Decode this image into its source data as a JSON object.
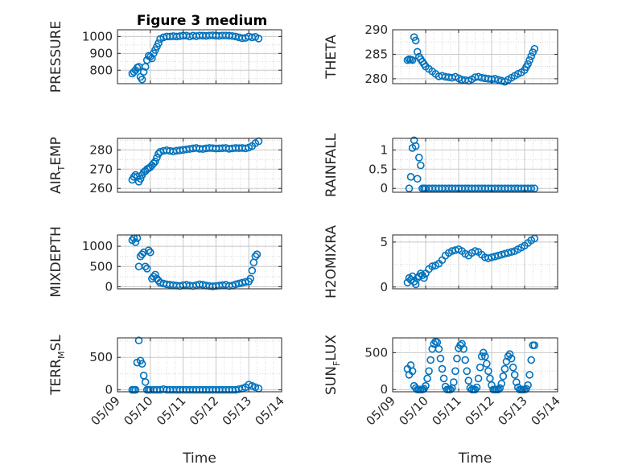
{
  "figure_title": "Figure 3 medium",
  "chart_data": [
    {
      "type": "scatter",
      "title": "Figure 3 medium",
      "ylabel": "PRESSURE",
      "xlabel": "",
      "xlim": [
        "05/09",
        "05/14"
      ],
      "ylim": [
        720,
        1040
      ],
      "yticks": [
        800,
        900,
        1000
      ],
      "xticks": [
        "05/09",
        "05/10",
        "05/11",
        "05/12",
        "05/13",
        "05/14"
      ],
      "grid": true,
      "x": [
        9.45,
        9.5,
        9.55,
        9.6,
        9.65,
        9.7,
        9.75,
        9.8,
        9.85,
        9.9,
        9.95,
        10.0,
        10.05,
        10.1,
        10.15,
        10.2,
        10.25,
        10.3,
        10.4,
        10.5,
        10.6,
        10.7,
        10.8,
        10.9,
        11.0,
        11.1,
        11.2,
        11.3,
        11.4,
        11.5,
        11.6,
        11.7,
        11.8,
        11.9,
        12.0,
        12.1,
        12.2,
        12.3,
        12.4,
        12.5,
        12.6,
        12.7,
        12.8,
        12.9,
        13.0,
        13.1,
        13.2,
        13.3
      ],
      "y": [
        780,
        790,
        800,
        815,
        820,
        760,
        745,
        790,
        820,
        860,
        885,
        880,
        870,
        900,
        920,
        940,
        960,
        985,
        995,
        1000,
        1000,
        1002,
        1000,
        1002,
        1005,
        1005,
        1000,
        1005,
        1002,
        1006,
        1005,
        1004,
        1006,
        1007,
        1005,
        1004,
        1006,
        1006,
        1005,
        1003,
        1000,
        995,
        990,
        992,
        1000,
        995,
        998,
        988
      ]
    },
    {
      "type": "scatter",
      "ylabel": "THETA",
      "xlabel": "",
      "xlim": [
        "05/09",
        "05/14"
      ],
      "ylim": [
        279,
        290
      ],
      "yticks": [
        280,
        285,
        290
      ],
      "xticks": [
        "05/09",
        "05/10",
        "05/11",
        "05/12",
        "05/13",
        "05/14"
      ],
      "grid": true,
      "x": [
        9.45,
        9.5,
        9.55,
        9.6,
        9.65,
        9.7,
        9.75,
        9.8,
        9.85,
        9.9,
        9.95,
        10.0,
        10.1,
        10.2,
        10.3,
        10.4,
        10.5,
        10.6,
        10.7,
        10.8,
        10.9,
        11.0,
        11.1,
        11.2,
        11.3,
        11.4,
        11.5,
        11.6,
        11.7,
        11.8,
        11.9,
        12.0,
        12.1,
        12.2,
        12.3,
        12.4,
        12.5,
        12.6,
        12.7,
        12.8,
        12.9,
        13.0,
        13.05,
        13.1,
        13.15,
        13.2,
        13.25,
        13.3
      ],
      "y": [
        283.8,
        284,
        283.9,
        283.8,
        288.5,
        287.8,
        285.5,
        284.5,
        284,
        283.5,
        283,
        282.5,
        282,
        281.5,
        281,
        280.5,
        280.6,
        280.4,
        280.3,
        280.2,
        280.4,
        280.1,
        279.8,
        279.7,
        279.6,
        279.9,
        280.3,
        280.4,
        280.2,
        280.1,
        280,
        279.9,
        280,
        279.8,
        279.6,
        279.4,
        279.8,
        280.2,
        280.6,
        281,
        281.3,
        281.8,
        282.4,
        283,
        283.8,
        284.6,
        285.4,
        286.1
      ]
    },
    {
      "type": "scatter",
      "ylabel": "AIR_TEMP",
      "xlabel": "",
      "xlim": [
        "05/09",
        "05/14"
      ],
      "ylim": [
        258,
        286
      ],
      "yticks": [
        260,
        270,
        280
      ],
      "xticks": [
        "05/09",
        "05/10",
        "05/11",
        "05/12",
        "05/13",
        "05/14"
      ],
      "grid": true,
      "x": [
        9.45,
        9.5,
        9.55,
        9.6,
        9.65,
        9.7,
        9.75,
        9.8,
        9.85,
        9.9,
        9.95,
        10.0,
        10.05,
        10.1,
        10.15,
        10.2,
        10.25,
        10.3,
        10.4,
        10.5,
        10.6,
        10.7,
        10.8,
        10.9,
        11.0,
        11.1,
        11.2,
        11.3,
        11.4,
        11.5,
        11.6,
        11.7,
        11.8,
        11.9,
        12.0,
        12.1,
        12.2,
        12.3,
        12.4,
        12.5,
        12.6,
        12.7,
        12.8,
        12.9,
        13.0,
        13.1,
        13.2,
        13.3
      ],
      "y": [
        264.5,
        266,
        267,
        266,
        263.5,
        265,
        267,
        268.5,
        269,
        270,
        270.5,
        271,
        272,
        273,
        274,
        276,
        278,
        279,
        279.5,
        279.8,
        279.5,
        279.2,
        279.6,
        279.8,
        280,
        280.3,
        280.5,
        280.8,
        281,
        280.6,
        280.5,
        280.8,
        281,
        280.9,
        280.7,
        280.8,
        280.9,
        281,
        280.6,
        280.8,
        281,
        280.9,
        281,
        280.8,
        281.2,
        282,
        283.5,
        284.5
      ]
    },
    {
      "type": "scatter",
      "ylabel": "RAINFALL",
      "xlabel": "",
      "xlim": [
        "05/09",
        "05/14"
      ],
      "ylim": [
        -0.1,
        1.3
      ],
      "yticks": [
        0,
        0.5,
        1
      ],
      "ytick_labels": [
        "0",
        "0.5",
        "1"
      ],
      "xticks": [
        "05/09",
        "05/10",
        "05/11",
        "05/12",
        "05/13",
        "05/14"
      ],
      "grid": true,
      "x": [
        9.5,
        9.55,
        9.6,
        9.65,
        9.7,
        9.75,
        9.8,
        9.85,
        9.9,
        9.95,
        10.0,
        10.1,
        10.2,
        10.3,
        10.4,
        10.5,
        10.6,
        10.7,
        10.8,
        10.9,
        11.0,
        11.1,
        11.2,
        11.3,
        11.4,
        11.5,
        11.6,
        11.7,
        11.8,
        11.9,
        12.0,
        12.1,
        12.2,
        12.3,
        12.4,
        12.5,
        12.6,
        12.7,
        12.8,
        12.9,
        13.0,
        13.1,
        13.2,
        13.3
      ],
      "y": [
        0,
        0.3,
        1.05,
        1.25,
        1.1,
        0.25,
        0.8,
        0.6,
        0,
        0,
        0,
        0,
        0,
        0,
        0,
        0,
        0,
        0,
        0,
        0,
        0,
        0,
        0,
        0,
        0,
        0,
        0,
        0,
        0,
        0,
        0,
        0,
        0,
        0,
        0,
        0,
        0,
        0,
        0,
        0,
        0,
        0,
        0,
        0
      ]
    },
    {
      "type": "scatter",
      "ylabel": "MIXDEPTH",
      "xlabel": "",
      "xlim": [
        "05/09",
        "05/14"
      ],
      "ylim": [
        -50,
        1280
      ],
      "yticks": [
        0,
        500,
        1000
      ],
      "xticks": [
        "05/09",
        "05/10",
        "05/11",
        "05/12",
        "05/13",
        "05/14"
      ],
      "grid": true,
      "x": [
        9.45,
        9.5,
        9.55,
        9.6,
        9.65,
        9.7,
        9.75,
        9.8,
        9.85,
        9.9,
        9.95,
        10.0,
        10.05,
        10.1,
        10.15,
        10.2,
        10.25,
        10.3,
        10.4,
        10.5,
        10.6,
        10.7,
        10.8,
        10.9,
        11.0,
        11.1,
        11.2,
        11.3,
        11.4,
        11.5,
        11.6,
        11.7,
        11.8,
        11.9,
        12.0,
        12.1,
        12.2,
        12.3,
        12.4,
        12.5,
        12.6,
        12.7,
        12.8,
        12.9,
        13.0,
        13.05,
        13.1,
        13.15,
        13.2,
        13.25
      ],
      "y": [
        1150,
        1200,
        1100,
        1200,
        500,
        750,
        800,
        850,
        500,
        450,
        900,
        850,
        200,
        250,
        300,
        200,
        150,
        100,
        80,
        60,
        50,
        40,
        30,
        20,
        40,
        50,
        30,
        20,
        40,
        60,
        50,
        30,
        20,
        10,
        20,
        30,
        40,
        50,
        20,
        30,
        60,
        80,
        100,
        120,
        130,
        200,
        400,
        600,
        750,
        800
      ]
    },
    {
      "type": "scatter",
      "ylabel": "H2OMIXRA",
      "xlabel": "",
      "xlim": [
        "05/09",
        "05/14"
      ],
      "ylim": [
        -0.2,
        5.8
      ],
      "yticks": [
        0,
        5
      ],
      "xticks": [
        "05/09",
        "05/10",
        "05/11",
        "05/12",
        "05/13",
        "05/14"
      ],
      "grid": true,
      "x": [
        9.45,
        9.5,
        9.55,
        9.6,
        9.65,
        9.7,
        9.75,
        9.8,
        9.85,
        9.9,
        9.95,
        10.0,
        10.1,
        10.2,
        10.3,
        10.4,
        10.5,
        10.6,
        10.7,
        10.8,
        10.9,
        11.0,
        11.1,
        11.2,
        11.3,
        11.4,
        11.5,
        11.6,
        11.7,
        11.8,
        11.9,
        12.0,
        12.1,
        12.2,
        12.3,
        12.4,
        12.5,
        12.6,
        12.7,
        12.8,
        12.9,
        13.0,
        13.1,
        13.2,
        13.3
      ],
      "y": [
        0.5,
        1,
        0.8,
        1.2,
        0.6,
        0.3,
        1,
        1.2,
        1.5,
        1.3,
        1,
        1.5,
        2,
        2.3,
        2.4,
        2.6,
        3,
        3.5,
        3.8,
        4,
        4.1,
        4.2,
        4,
        3.7,
        3.5,
        3.8,
        4,
        3.9,
        3.6,
        3.3,
        3.2,
        3.3,
        3.4,
        3.5,
        3.6,
        3.7,
        3.8,
        3.9,
        4,
        4.2,
        4.4,
        4.6,
        4.9,
        5.2,
        5.4
      ]
    },
    {
      "type": "scatter",
      "ylabel": "TERR_MSL",
      "xlabel": "Time",
      "xlim": [
        "05/09",
        "05/14"
      ],
      "ylim": [
        -30,
        800
      ],
      "yticks": [
        0,
        500
      ],
      "xticks": [
        "05/09",
        "05/10",
        "05/11",
        "05/12",
        "05/13",
        "05/14"
      ],
      "grid": true,
      "x": [
        9.45,
        9.5,
        9.55,
        9.6,
        9.65,
        9.7,
        9.75,
        9.8,
        9.85,
        9.9,
        9.95,
        10.0,
        10.1,
        10.2,
        10.3,
        10.4,
        10.5,
        10.6,
        10.7,
        10.8,
        10.9,
        11.0,
        11.1,
        11.2,
        11.3,
        11.4,
        11.5,
        11.6,
        11.7,
        11.8,
        11.9,
        12.0,
        12.1,
        12.2,
        12.3,
        12.4,
        12.5,
        12.6,
        12.7,
        12.8,
        12.9,
        13.0,
        13.1,
        13.2,
        13.3
      ],
      "y": [
        0,
        0,
        0,
        420,
        760,
        450,
        400,
        220,
        120,
        0,
        0,
        0,
        0,
        0,
        0,
        10,
        0,
        0,
        0,
        0,
        0,
        0,
        0,
        0,
        0,
        0,
        0,
        0,
        0,
        0,
        0,
        0,
        0,
        0,
        0,
        0,
        0,
        0,
        10,
        20,
        40,
        80,
        60,
        40,
        20
      ]
    },
    {
      "type": "scatter",
      "ylabel": "SUN_FLUX",
      "xlabel": "Time",
      "xlim": [
        "05/09",
        "05/14"
      ],
      "ylim": [
        -30,
        700
      ],
      "yticks": [
        0,
        500
      ],
      "xticks": [
        "05/09",
        "05/10",
        "05/11",
        "05/12",
        "05/13",
        "05/14"
      ],
      "grid": true,
      "x": [
        9.45,
        9.5,
        9.55,
        9.6,
        9.65,
        9.7,
        9.75,
        9.8,
        9.85,
        9.9,
        9.95,
        10.0,
        10.05,
        10.1,
        10.15,
        10.2,
        10.25,
        10.3,
        10.35,
        10.4,
        10.45,
        10.5,
        10.55,
        10.6,
        10.65,
        10.7,
        10.75,
        10.8,
        10.85,
        10.9,
        10.95,
        11.0,
        11.05,
        11.1,
        11.15,
        11.2,
        11.25,
        11.3,
        11.35,
        11.4,
        11.45,
        11.5,
        11.55,
        11.6,
        11.65,
        11.7,
        11.75,
        11.8,
        11.85,
        11.9,
        11.95,
        12.0,
        12.05,
        12.1,
        12.15,
        12.2,
        12.25,
        12.3,
        12.35,
        12.4,
        12.45,
        12.5,
        12.55,
        12.6,
        12.65,
        12.7,
        12.75,
        12.8,
        12.85,
        12.9,
        12.95,
        13.0,
        13.05,
        13.1,
        13.15,
        13.2,
        13.25,
        13.3
      ],
      "y": [
        280,
        200,
        330,
        250,
        50,
        20,
        0,
        0,
        0,
        0,
        10,
        50,
        150,
        250,
        400,
        550,
        620,
        650,
        640,
        550,
        420,
        280,
        150,
        40,
        0,
        0,
        0,
        20,
        100,
        250,
        420,
        560,
        600,
        620,
        550,
        400,
        250,
        120,
        20,
        0,
        0,
        0,
        30,
        150,
        300,
        450,
        500,
        450,
        350,
        250,
        150,
        60,
        0,
        0,
        0,
        0,
        20,
        80,
        180,
        280,
        380,
        450,
        480,
        420,
        300,
        200,
        100,
        30,
        0,
        0,
        0,
        0,
        10,
        60,
        200,
        400,
        600,
        600
      ]
    }
  ]
}
